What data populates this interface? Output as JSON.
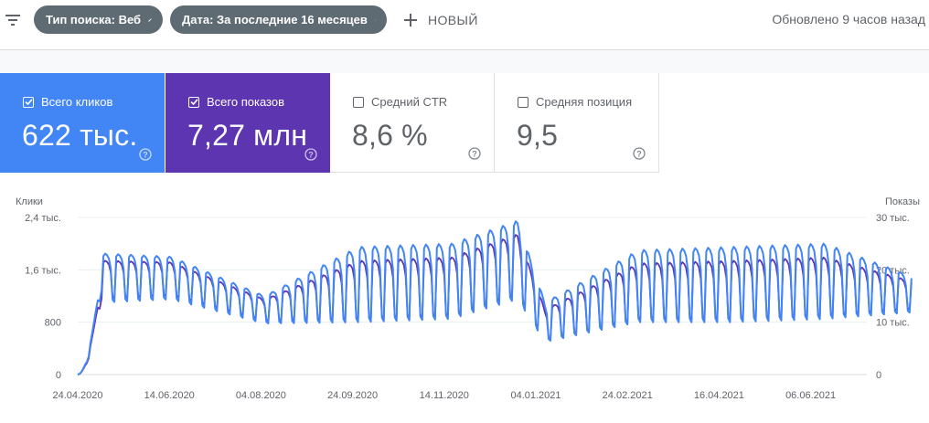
{
  "topbar": {
    "filter_icon": "filter-list-icon",
    "chips": [
      {
        "label": "Тип поиска: Веб"
      },
      {
        "label": "Дата: За последние 16 месяцев"
      }
    ],
    "new_label": "НОВЫЙ",
    "updated_text": "Обновлено 9 часов назад"
  },
  "cards": [
    {
      "label": "Всего кликов",
      "value": "622 тыс.",
      "checked": true,
      "color": "#4285f4"
    },
    {
      "label": "Всего показов",
      "value": "7,27 млн",
      "checked": true,
      "color": "#5e35b1"
    },
    {
      "label": "Средний CTR",
      "value": "8,6 %",
      "checked": false
    },
    {
      "label": "Средняя позиция",
      "value": "9,5",
      "checked": false
    }
  ],
  "chart_data": {
    "type": "line",
    "left_axis_label": "Клики",
    "right_axis_label": "Показы",
    "left_ticks": [
      "0",
      "800",
      "1,6 тыс.",
      "2,4 тыс."
    ],
    "right_ticks": [
      "0",
      "10 тыс.",
      "20 тыс.",
      "30 тыс."
    ],
    "x_ticks": [
      "24.04.2020",
      "14.06.2020",
      "04.08.2020",
      "24.09.2020",
      "14.11.2020",
      "04.01.2021",
      "24.02.2021",
      "16.04.2021",
      "06.06.2021"
    ],
    "clicks_ylim": [
      0,
      2400
    ],
    "impressions_ylim": [
      0,
      30000
    ],
    "grid": true,
    "series": [
      {
        "name": "Клики",
        "axis": "left",
        "color": "#4285f4"
      },
      {
        "name": "Показы",
        "axis": "right",
        "color": "#5e35b1"
      }
    ],
    "clicks_weekly_estimate": [
      {
        "x": "24.04.2020",
        "peak": 0,
        "trough": 0
      },
      {
        "x": "07.05.2020",
        "peak": 1850,
        "trough": 1100
      },
      {
        "x": "14.06.2020",
        "peak": 1800,
        "trough": 1150
      },
      {
        "x": "04.08.2020",
        "peak": 1200,
        "trough": 780
      },
      {
        "x": "24.09.2020",
        "peak": 1950,
        "trough": 800
      },
      {
        "x": "14.11.2020",
        "peak": 2000,
        "trough": 850
      },
      {
        "x": "20.12.2020",
        "peak": 2350,
        "trough": 1150
      },
      {
        "x": "04.01.2021",
        "peak": 1100,
        "trough": 500
      },
      {
        "x": "24.02.2021",
        "peak": 1900,
        "trough": 800
      },
      {
        "x": "16.04.2021",
        "peak": 1950,
        "trough": 800
      },
      {
        "x": "06.06.2021",
        "peak": 2000,
        "trough": 850
      },
      {
        "x": "23.07.2021",
        "peak": 1500,
        "trough": 950
      }
    ]
  }
}
